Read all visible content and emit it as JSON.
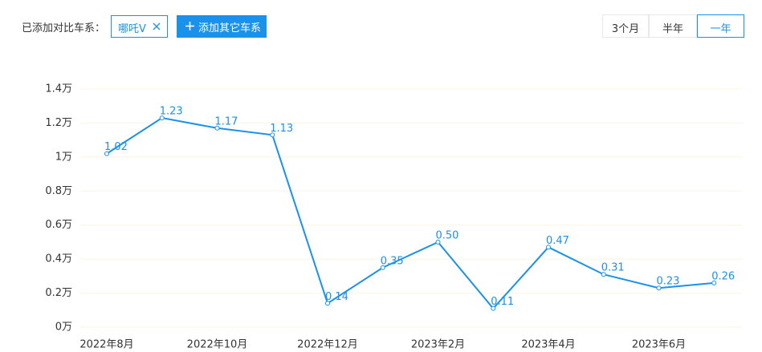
{
  "ui": {
    "compare_label": "已添加对比车系：",
    "selected_series": "哪吒V",
    "add_button": "添加其它车系",
    "range_options": [
      "3个月",
      "半年",
      "一年"
    ]
  },
  "chart_data": {
    "type": "line",
    "categories": [
      "2022年8月",
      null,
      "2022年10月",
      null,
      "2022年12月",
      null,
      "2023年2月",
      null,
      "2023年4月",
      null,
      "2023年6月",
      null
    ],
    "series": [
      {
        "name": "哪吒V",
        "color": "#1a91eb",
        "values": [
          1.02,
          1.23,
          1.17,
          1.13,
          0.14,
          0.35,
          0.5,
          0.11,
          0.47,
          0.31,
          0.23,
          0.26
        ],
        "value_labels": [
          "1.02",
          "1.23",
          "1.17",
          "1.13",
          "0.14",
          "0.35",
          "0.50",
          "0.11",
          "0.47",
          "0.31",
          "0.23",
          "0.26"
        ]
      }
    ],
    "ylim": [
      0,
      1.4
    ],
    "yticks": [
      {
        "value": 0,
        "label": "0万"
      },
      {
        "value": 0.2,
        "label": "0.2万"
      },
      {
        "value": 0.4,
        "label": "0.4万"
      },
      {
        "value": 0.6,
        "label": "0.6万"
      },
      {
        "value": 0.8,
        "label": "0.8万"
      },
      {
        "value": 1,
        "label": "1万"
      },
      {
        "value": 1.2,
        "label": "1.2万"
      },
      {
        "value": 1.4,
        "label": "1.4万"
      }
    ],
    "grid": true
  }
}
